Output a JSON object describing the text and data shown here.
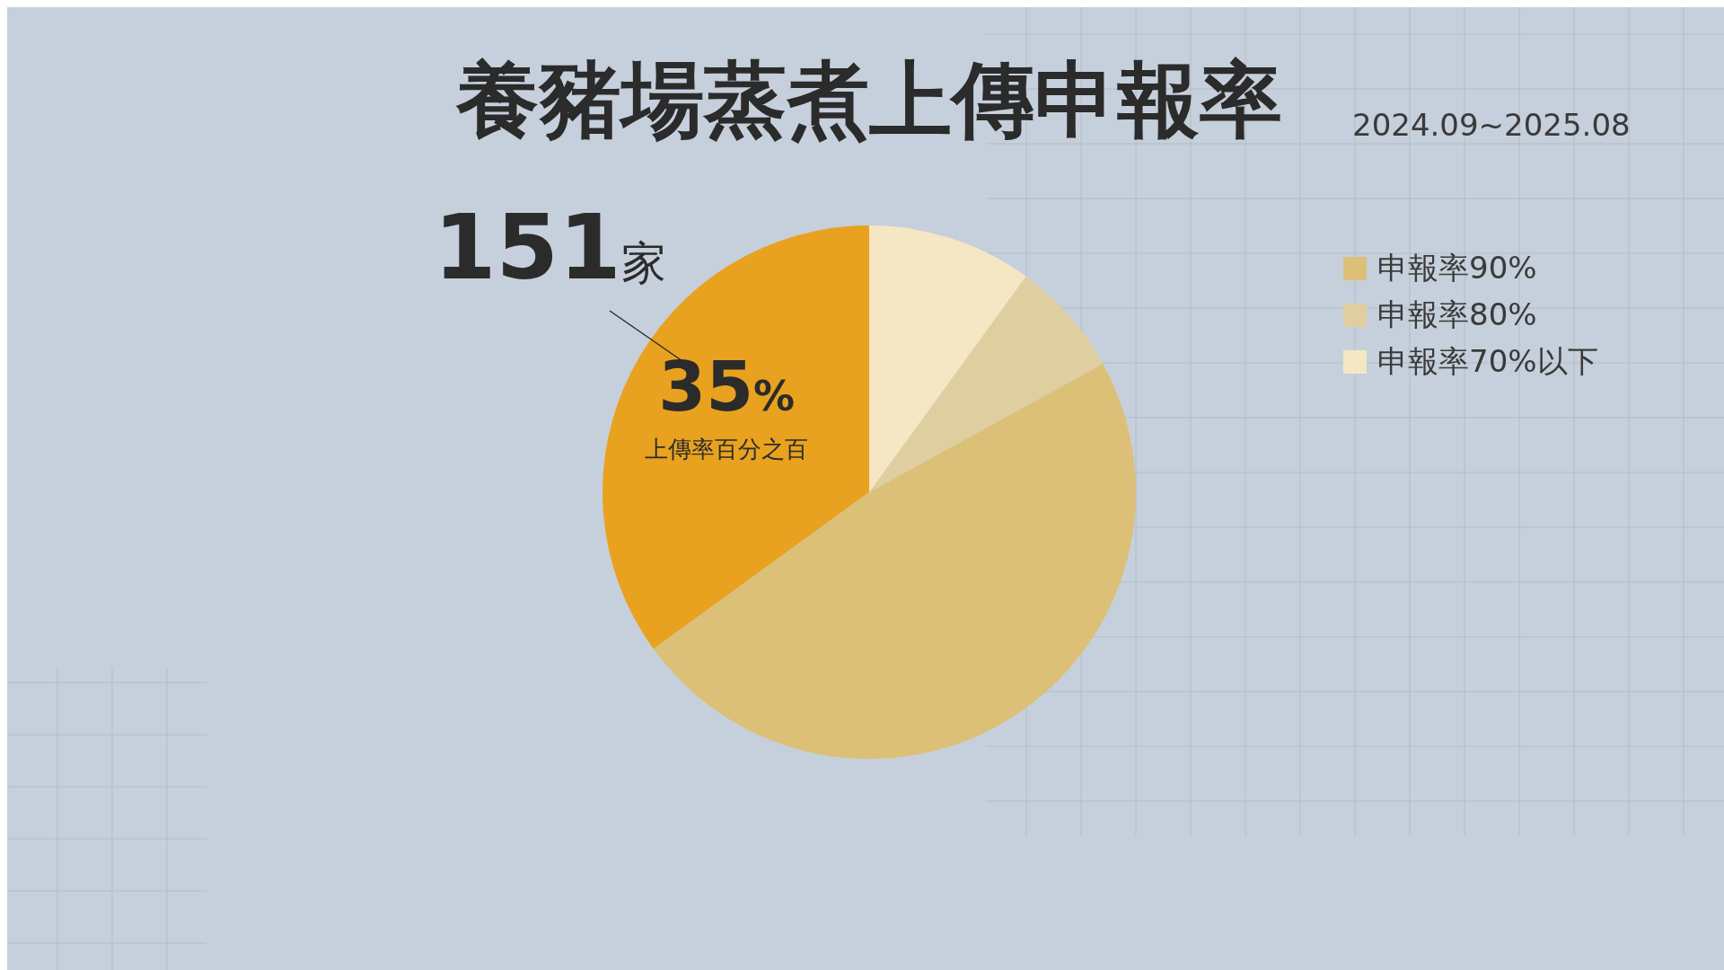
{
  "chart_data": {
    "type": "pie",
    "title": "養豬場蒸煮上傳申報率",
    "subtitle": "2024.09~2025.08",
    "categories": [
      "上傳率百分之百",
      "申報率90%",
      "申報率80%",
      "申報率70%以下"
    ],
    "values": [
      35,
      48,
      7,
      10
    ],
    "colors": [
      "#e8a21f",
      "#dcc078",
      "#dfcfa0",
      "#f5e6c4"
    ],
    "value_labels": [
      "35%",
      null,
      null,
      null
    ],
    "annotations": [
      "151家"
    ],
    "legend": "top right"
  }
}
